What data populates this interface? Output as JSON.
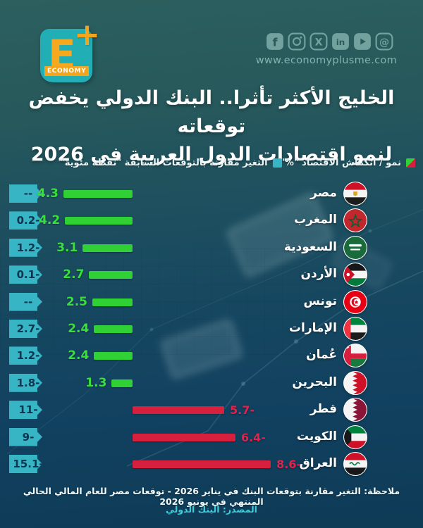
{
  "header": {
    "logo": {
      "letter": "E",
      "plus": "+",
      "wordmark": "ECONOMY"
    },
    "website": "www.economyplusme.com",
    "social": [
      "facebook",
      "instagram",
      "x",
      "linkedin",
      "youtube",
      "threads"
    ]
  },
  "title": {
    "line1": "الخليج الأكثر تأثرا.. البنك الدولي يخفض توقعاته",
    "line2": "لنمو اقتصادات الدول العربية في 2026"
  },
  "legend": {
    "growth_label": "نمو / انكماش الاقتصاد \"%\"",
    "change_label": "التغير مقارنة بالتوقعات السابقة \"نقطة مئوية\""
  },
  "chart_data": {
    "type": "bar",
    "orientation": "horizontal",
    "title": "الخليج الأكثر تأثرا.. البنك الدولي يخفض توقعاته لنمو اقتصادات الدول العربية في 2026",
    "categories": [
      "مصر",
      "المغرب",
      "السعودية",
      "الأردن",
      "تونس",
      "الإمارات",
      "عُمان",
      "البحرين",
      "قطر",
      "الكويت",
      "العراق"
    ],
    "series": [
      {
        "name": "نمو / انكماش الاقتصاد \"%\"",
        "values": [
          4.3,
          4.2,
          3.1,
          2.7,
          2.5,
          2.4,
          2.4,
          1.3,
          -5.7,
          -6.4,
          -8.6
        ]
      },
      {
        "name": "التغير مقارنة بالتوقعات السابقة \"نقطة مئوية\"",
        "values": [
          null,
          -0.2,
          -1.2,
          -0.1,
          null,
          -2.7,
          -1.2,
          -1.8,
          -11,
          -9,
          -15.1
        ]
      }
    ],
    "legend_position": "top",
    "grid": false
  },
  "countries": [
    {
      "name": "مصر",
      "flag": "egypt",
      "growth": 4.3,
      "growth_display": "4.3",
      "change_display": "--"
    },
    {
      "name": "المغرب",
      "flag": "morocco",
      "growth": 4.2,
      "growth_display": "4.2",
      "change_display": "-0.2"
    },
    {
      "name": "السعودية",
      "flag": "saudi",
      "growth": 3.1,
      "growth_display": "3.1",
      "change_display": "-1.2"
    },
    {
      "name": "الأردن",
      "flag": "jordan",
      "growth": 2.7,
      "growth_display": "2.7",
      "change_display": "-0.1"
    },
    {
      "name": "تونس",
      "flag": "tunisia",
      "growth": 2.5,
      "growth_display": "2.5",
      "change_display": "--"
    },
    {
      "name": "الإمارات",
      "flag": "uae",
      "growth": 2.4,
      "growth_display": "2.4",
      "change_display": "-2.7"
    },
    {
      "name": "عُمان",
      "flag": "oman",
      "growth": 2.4,
      "growth_display": "2.4",
      "change_display": "-1.2"
    },
    {
      "name": "البحرين",
      "flag": "bahrain",
      "growth": 1.3,
      "growth_display": "1.3",
      "change_display": "-1.8"
    },
    {
      "name": "قطر",
      "flag": "qatar",
      "growth": -5.7,
      "growth_display": "-5.7",
      "change_display": "-11"
    },
    {
      "name": "الكويت",
      "flag": "kuwait",
      "growth": -6.4,
      "growth_display": "-6.4",
      "change_display": "-9"
    },
    {
      "name": "العراق",
      "flag": "iraq",
      "growth": -8.6,
      "growth_display": "-8.6",
      "change_display": "-15.1"
    }
  ],
  "footer": {
    "note": "ملاحظة: التغير مقارنة بتوقعات البنك في يناير 2026 - توقعات مصر للعام المالي الحالي المنتهي في يونيو 2026",
    "source": "المصدر: البنك الدولي"
  },
  "colors": {
    "growth_positive": "#2fd134",
    "growth_negative": "#d6203e",
    "change_badge": "#38b5c5",
    "background_top": "#2c5f5e",
    "background_bottom": "#0e3b56",
    "accent_orange": "#f3a51d",
    "logo_teal": "#22aeb5"
  }
}
